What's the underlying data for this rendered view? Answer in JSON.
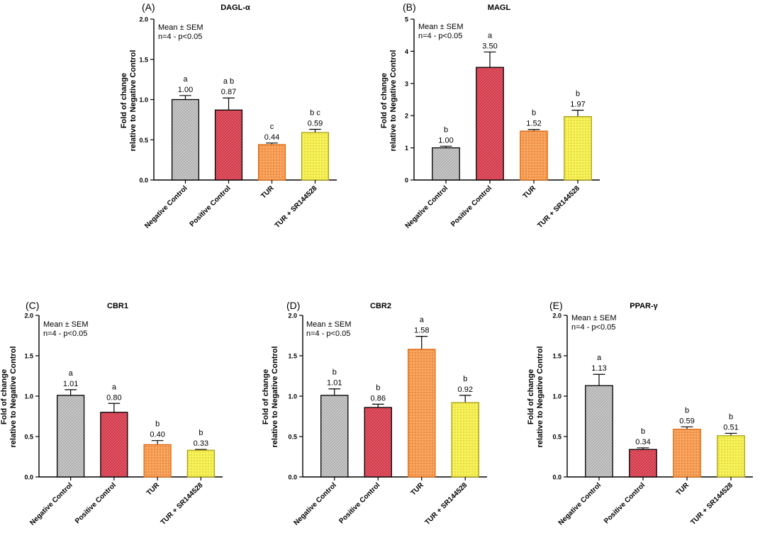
{
  "stats_note": {
    "line1": "Mean ± SEM",
    "line2": "n=4 - p<0.05"
  },
  "ylabel": {
    "line1": "Fold of change",
    "line2": "relative to Negative Control"
  },
  "categories": [
    "Negative Control",
    "Positive Control",
    "TUR",
    "TUR + SR144528"
  ],
  "colors": {
    "negative_control": "#c9c9c9",
    "positive_control": "#e8505f",
    "tur": "#f59a52",
    "tur_sr": "#f6f04a",
    "edge_negative": "#000000",
    "edge_positive": "#000000",
    "edge_tur": "#e06a10",
    "edge_tur_sr": "#a8a010"
  },
  "chart_data": [
    {
      "panel": "(A)",
      "title": "DAGL-α",
      "type": "bar",
      "categories": [
        "Negative Control",
        "Positive Control",
        "TUR",
        "TUR + SR144528"
      ],
      "values": [
        1.0,
        0.87,
        0.44,
        0.59
      ],
      "value_labels": [
        "1.00",
        "0.87",
        "0.44",
        "0.59"
      ],
      "errors": [
        0.05,
        0.15,
        0.02,
        0.04
      ],
      "letters": [
        "a",
        "a b",
        "c",
        "b c"
      ],
      "ylim": [
        0,
        2.0
      ],
      "yticks": [
        "0.0",
        "0.5",
        "1.0",
        "1.5",
        "2.0"
      ],
      "xlabel": "",
      "ylabel": "Fold of change relative to Negative Control"
    },
    {
      "panel": "(B)",
      "title": "MAGL",
      "type": "bar",
      "categories": [
        "Negative Control",
        "Positive Control",
        "TUR",
        "TUR + SR144528"
      ],
      "values": [
        1.0,
        3.5,
        1.52,
        1.97
      ],
      "value_labels": [
        "1.00",
        "3.50",
        "1.52",
        "1.97"
      ],
      "errors": [
        0.05,
        0.48,
        0.05,
        0.2
      ],
      "letters": [
        "b",
        "a",
        "b",
        "b"
      ],
      "ylim": [
        0,
        5
      ],
      "yticks": [
        "0",
        "1",
        "2",
        "3",
        "4",
        "5"
      ],
      "xlabel": "",
      "ylabel": "Fold of change relative to Negative Control"
    },
    {
      "panel": "(C)",
      "title": "CBR1",
      "type": "bar",
      "categories": [
        "Negative Control",
        "Positive Control",
        "TUR",
        "TUR + SR144528"
      ],
      "values": [
        1.01,
        0.8,
        0.4,
        0.33
      ],
      "value_labels": [
        "1.01",
        "0.80",
        "0.40",
        "0.33"
      ],
      "errors": [
        0.07,
        0.11,
        0.05,
        0.01
      ],
      "letters": [
        "a",
        "a",
        "b",
        "b"
      ],
      "ylim": [
        0,
        2.0
      ],
      "yticks": [
        "0.0",
        "0.5",
        "1.0",
        "1.5",
        "2.0"
      ],
      "xlabel": "",
      "ylabel": "Fold of change relative to Negative Control"
    },
    {
      "panel": "(D)",
      "title": "CBR2",
      "type": "bar",
      "categories": [
        "Negative Control",
        "Positive Control",
        "TUR",
        "TUR + SR144528"
      ],
      "values": [
        1.01,
        0.86,
        1.58,
        0.92
      ],
      "value_labels": [
        "1.01",
        "0.86",
        "1.58",
        "0.92"
      ],
      "errors": [
        0.08,
        0.04,
        0.16,
        0.09
      ],
      "letters": [
        "b",
        "b",
        "a",
        "b"
      ],
      "ylim": [
        0,
        2.0
      ],
      "yticks": [
        "0.0",
        "0.5",
        "1.0",
        "1.5",
        "2.0"
      ],
      "xlabel": "",
      "ylabel": "Fold of change relative to Negative Control"
    },
    {
      "panel": "(E)",
      "title": "PPAR-γ",
      "type": "bar",
      "categories": [
        "Negative Control",
        "Positive Control",
        "TUR",
        "TUR + SR144528"
      ],
      "values": [
        1.13,
        0.34,
        0.59,
        0.51
      ],
      "value_labels": [
        "1.13",
        "0.34",
        "0.59",
        "0.51"
      ],
      "errors": [
        0.14,
        0.02,
        0.03,
        0.03
      ],
      "letters": [
        "a",
        "b",
        "b",
        "b"
      ],
      "ylim": [
        0,
        2.0
      ],
      "yticks": [
        "0.0",
        "0.5",
        "1.0",
        "1.5",
        "2.0"
      ],
      "xlabel": "",
      "ylabel": "Fold of change relative to Negative Control"
    }
  ]
}
